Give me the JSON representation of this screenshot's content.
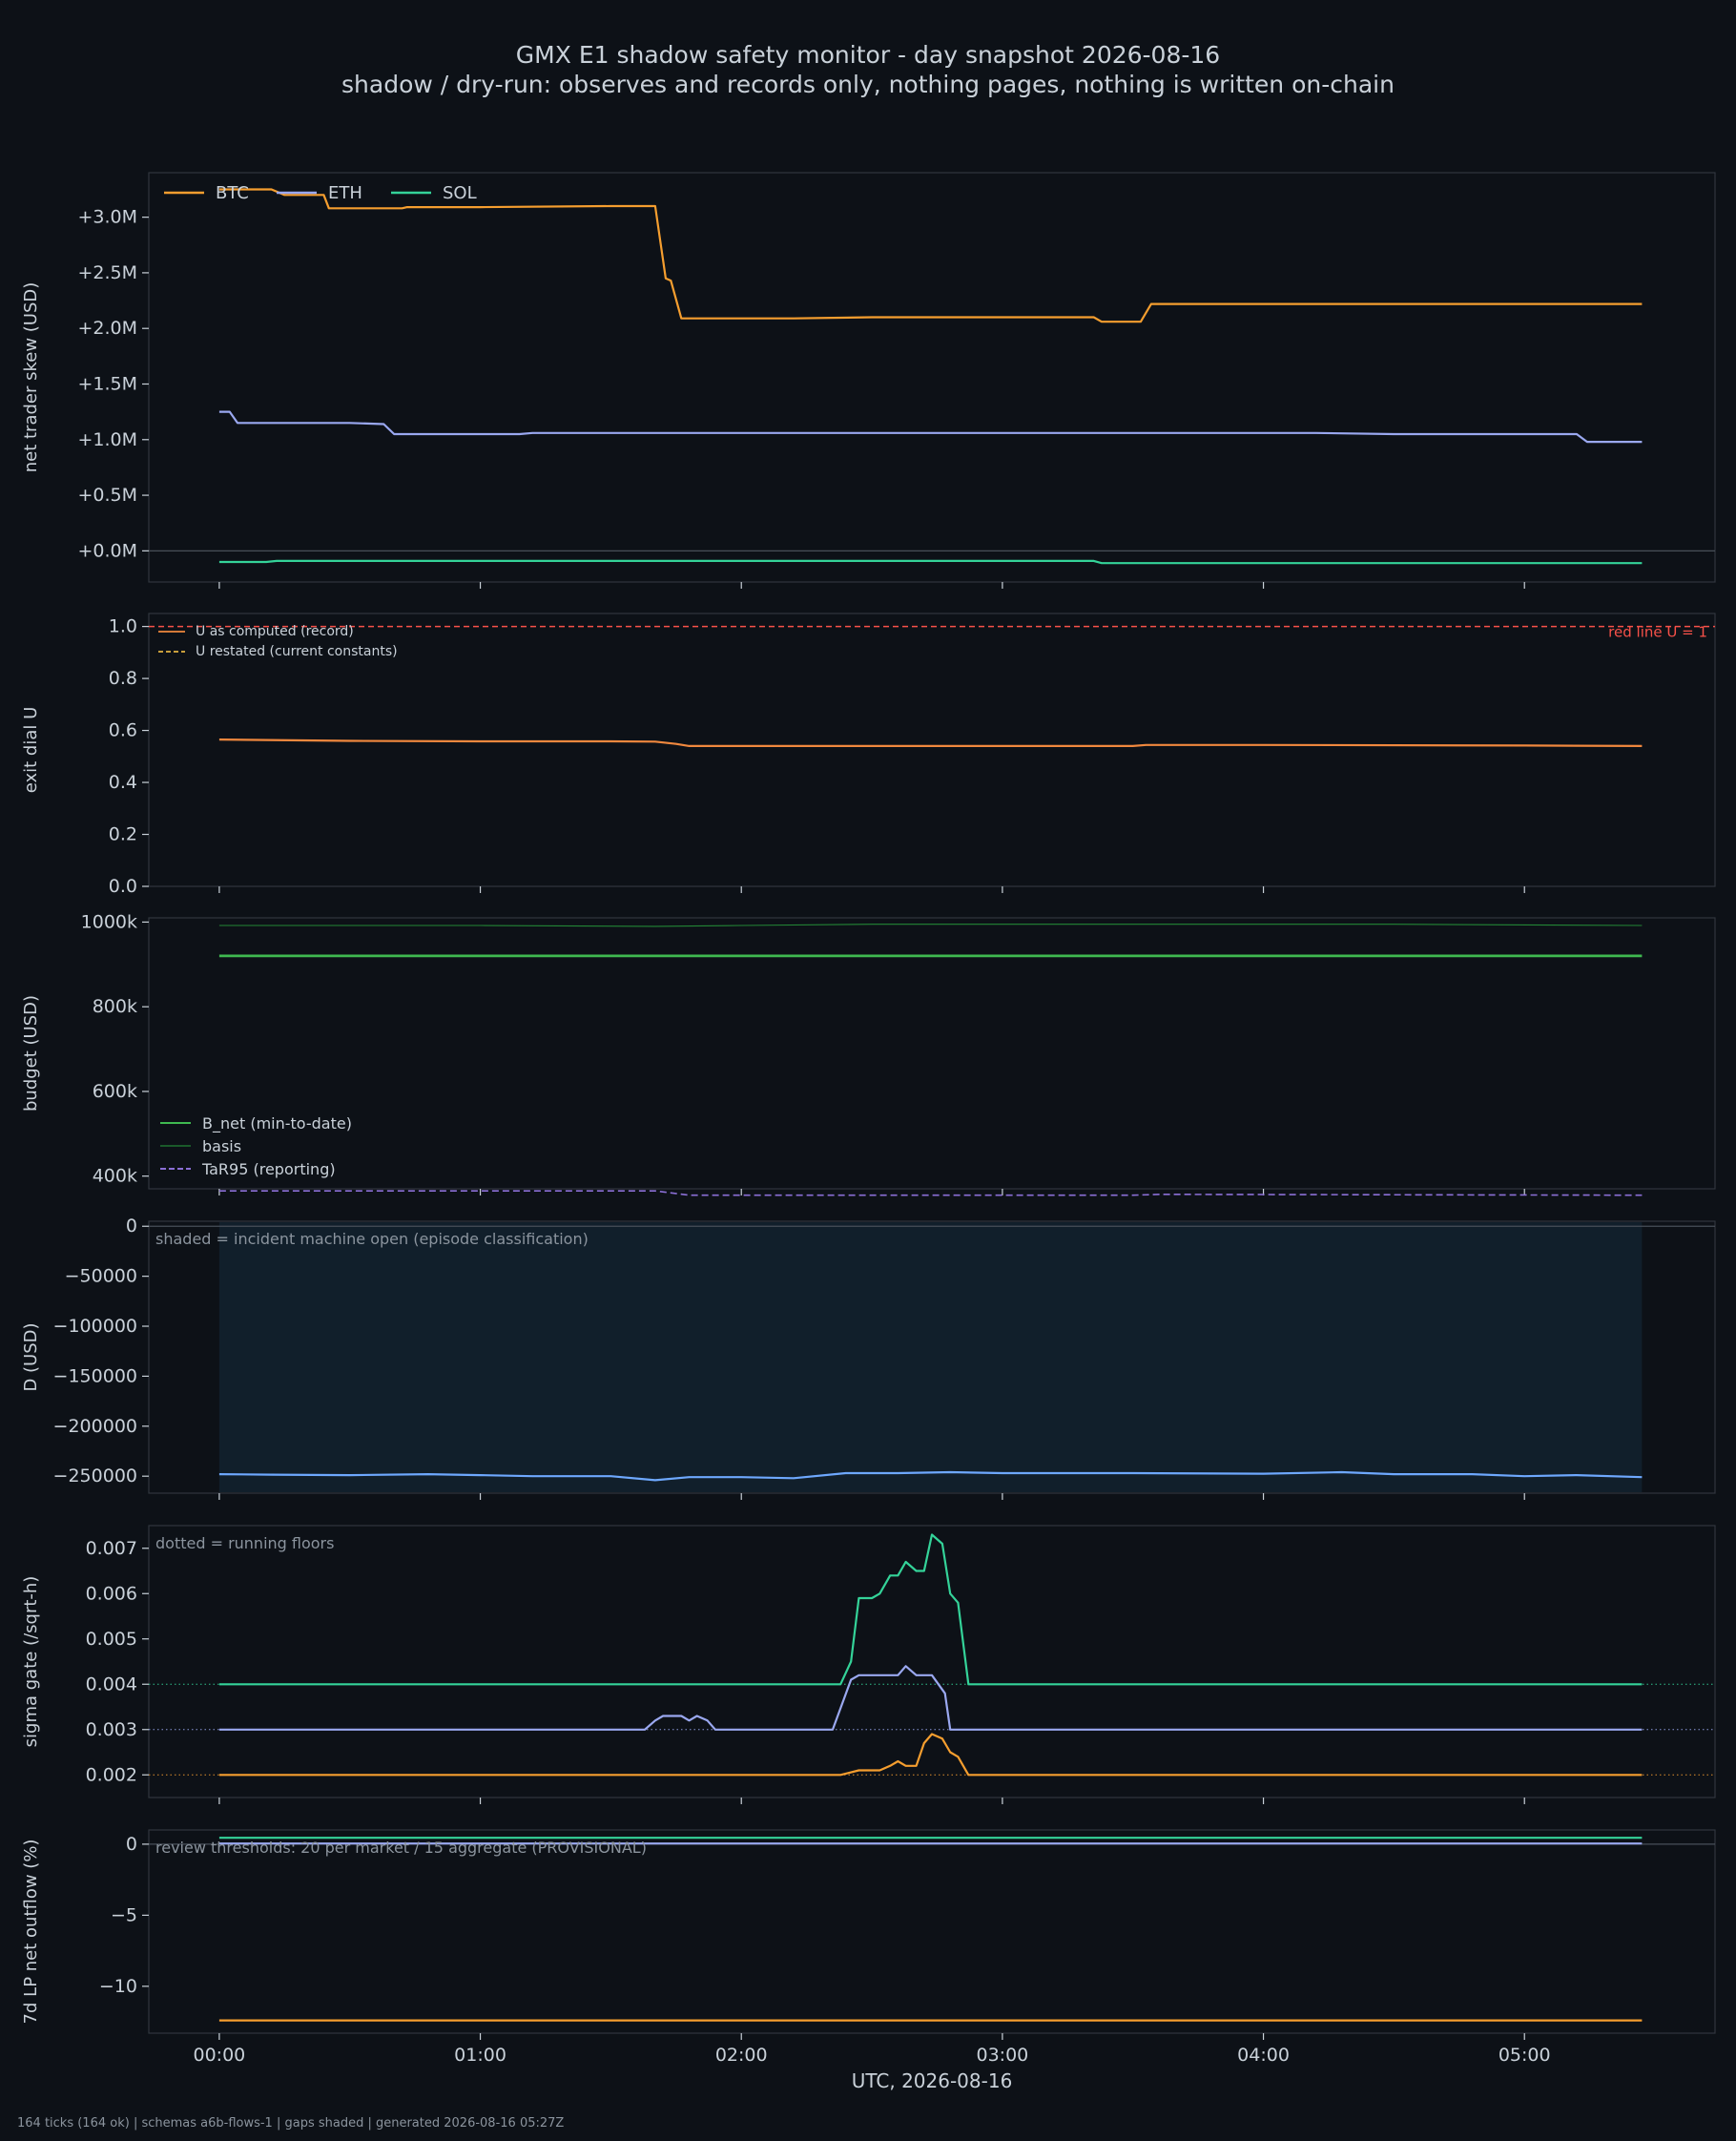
{
  "title": "GMX E1 shadow safety monitor - day snapshot 2026-08-16",
  "subtitle": "shadow / dry-run: observes and records only, nothing pages, nothing is written on-chain",
  "footer": "164 ticks (164 ok) | schemas a6b-flows-1 | gaps shaded | generated 2026-08-16 05:27Z",
  "colors": {
    "background": "#0d1117",
    "panel": "#0d1117",
    "frame": "#30363d",
    "text": "#c9d1d9",
    "btc": "#f59e2f",
    "eth": "#9aa8f0",
    "sol": "#34d399",
    "u_computed": "#f0883e",
    "u_restated": "#e3b341",
    "redline": "#f85149",
    "b_net": "#3fb950",
    "basis": "#238636",
    "tar95": "#8b6fd6",
    "d": "#6ea8fe",
    "shade": "#132433"
  },
  "chart_data": [
    {
      "id": "skew",
      "type": "line",
      "ylabel": "net trader skew (USD)",
      "ylim": [
        -0.28,
        3.4
      ],
      "yticks": [
        0,
        0.5,
        1.0,
        1.5,
        2.0,
        2.5,
        3.0
      ],
      "ytick_labels": [
        "+0.0M",
        "+0.5M",
        "+1.0M",
        "+1.5M",
        "+2.0M",
        "+2.5M",
        "+3.0M"
      ],
      "zero_line": 0,
      "legend": "top-left",
      "series": [
        {
          "name": "BTC",
          "color": "#f59e2f",
          "x": [
            0,
            0.2,
            0.25,
            0.32,
            0.4,
            0.42,
            0.7,
            0.72,
            1.0,
            1.5,
            1.67,
            1.71,
            1.73,
            1.77,
            1.8,
            2.0,
            2.2,
            2.5,
            3.0,
            3.2,
            3.35,
            3.38,
            3.5,
            3.53,
            3.57,
            4.0,
            4.5,
            5.0,
            5.45
          ],
          "values": [
            3.25,
            3.25,
            3.2,
            3.2,
            3.2,
            3.08,
            3.08,
            3.09,
            3.09,
            3.1,
            3.1,
            2.45,
            2.43,
            2.09,
            2.09,
            2.09,
            2.09,
            2.1,
            2.1,
            2.1,
            2.1,
            2.06,
            2.06,
            2.06,
            2.22,
            2.22,
            2.22,
            2.22,
            2.22
          ]
        },
        {
          "name": "ETH",
          "color": "#9aa8f0",
          "x": [
            0,
            0.04,
            0.07,
            0.1,
            0.5,
            0.63,
            0.67,
            1.0,
            1.15,
            1.2,
            2.0,
            2.5,
            3.0,
            3.5,
            4.0,
            4.2,
            4.5,
            4.9,
            4.95,
            5.2,
            5.24,
            5.45
          ],
          "values": [
            1.25,
            1.25,
            1.15,
            1.15,
            1.15,
            1.14,
            1.05,
            1.05,
            1.05,
            1.06,
            1.06,
            1.06,
            1.06,
            1.06,
            1.06,
            1.06,
            1.05,
            1.05,
            1.05,
            1.05,
            0.98,
            0.98
          ]
        },
        {
          "name": "SOL",
          "color": "#34d399",
          "x": [
            0,
            0.18,
            0.22,
            1.0,
            2.0,
            3.0,
            3.35,
            3.38,
            4.0,
            5.0,
            5.45
          ],
          "values": [
            -0.1,
            -0.1,
            -0.09,
            -0.09,
            -0.09,
            -0.09,
            -0.09,
            -0.11,
            -0.11,
            -0.11,
            -0.11
          ]
        }
      ]
    },
    {
      "id": "exit",
      "type": "line",
      "ylabel": "exit dial U",
      "ylim": [
        0,
        1.05
      ],
      "yticks": [
        0,
        0.2,
        0.4,
        0.6,
        0.8,
        1.0
      ],
      "ytick_labels": [
        "0.0",
        "0.2",
        "0.4",
        "0.6",
        "0.8",
        "1.0"
      ],
      "legend": "top-left",
      "annotation": "red line U = 1",
      "series": [
        {
          "name": "U as computed (record)",
          "color": "#f0883e",
          "x": [
            0,
            0.5,
            1.0,
            1.5,
            1.67,
            1.75,
            1.8,
            2.5,
            3.0,
            3.5,
            3.55,
            4.0,
            5.0,
            5.45
          ],
          "values": [
            0.565,
            0.56,
            0.558,
            0.558,
            0.557,
            0.548,
            0.54,
            0.54,
            0.54,
            0.54,
            0.544,
            0.544,
            0.542,
            0.54
          ]
        },
        {
          "name": "U restated (current constants)",
          "color": "#e3b341",
          "x": [],
          "values": []
        }
      ],
      "redline": {
        "value": 1.0,
        "color": "#f85149"
      }
    },
    {
      "id": "budget",
      "type": "line",
      "ylabel": "budget (USD)",
      "ylim": [
        370000,
        1010000
      ],
      "yticks": [
        400000,
        600000,
        800000,
        1000000
      ],
      "ytick_labels": [
        "400k",
        "600k",
        "800k",
        "1000k"
      ],
      "legend": "bottom-left",
      "series": [
        {
          "name": "B_net (min-to-date)",
          "color": "#3fb950",
          "x": [
            0,
            5.45
          ],
          "values": [
            920000,
            920000
          ]
        },
        {
          "name": "basis",
          "color": "#238636",
          "x": [
            0,
            1.0,
            1.67,
            2.0,
            2.5,
            3.0,
            4.0,
            4.5,
            5.45
          ],
          "values": [
            992000,
            992000,
            990000,
            992000,
            995000,
            995000,
            995000,
            995000,
            992000
          ]
        },
        {
          "name": "TaR95 (reporting)",
          "color": "#8b6fd6",
          "x": [
            0,
            1.67,
            1.8,
            3.5,
            3.6,
            5.45
          ],
          "values": [
            365000,
            365000,
            355000,
            355000,
            357000,
            355000
          ]
        }
      ]
    },
    {
      "id": "drawdown",
      "type": "line",
      "ylabel": "D (USD)",
      "ylim": [
        -267000,
        5000
      ],
      "yticks": [
        0,
        -50000,
        -100000,
        -150000,
        -200000,
        -250000
      ],
      "ytick_labels": [
        "0",
        "−50000",
        "−100000",
        "−150000",
        "−200000",
        "−250000"
      ],
      "zero_line": 0,
      "annotation": "shaded = incident machine open (episode classification)",
      "shade": [
        0,
        5.45
      ],
      "series": [
        {
          "name": "D",
          "color": "#6ea8fe",
          "x": [
            0,
            0.2,
            0.5,
            0.8,
            1.0,
            1.2,
            1.5,
            1.67,
            1.8,
            2.0,
            2.2,
            2.4,
            2.6,
            2.8,
            3.0,
            3.5,
            4.0,
            4.3,
            4.5,
            4.8,
            5.0,
            5.2,
            5.45
          ],
          "values": [
            -248000,
            -248500,
            -249000,
            -248000,
            -249000,
            -250000,
            -250000,
            -254000,
            -251000,
            -251000,
            -252000,
            -247000,
            -247000,
            -246000,
            -247000,
            -247000,
            -247500,
            -246000,
            -248000,
            -248000,
            -250000,
            -249000,
            -251000
          ]
        }
      ]
    },
    {
      "id": "sigma",
      "type": "line",
      "ylabel": "sigma gate (/sqrt-h)",
      "ylim": [
        0.0015,
        0.0075
      ],
      "yticks": [
        0.002,
        0.003,
        0.004,
        0.005,
        0.006,
        0.007
      ],
      "ytick_labels": [
        "0.002",
        "0.003",
        "0.004",
        "0.005",
        "0.006",
        "0.007"
      ],
      "annotation": "dotted = running floors",
      "floors": [
        {
          "value": 0.004,
          "color": "#34d399"
        },
        {
          "value": 0.003,
          "color": "#9aa8f0"
        },
        {
          "value": 0.002,
          "color": "#f59e2f"
        }
      ],
      "series": [
        {
          "name": "SOL",
          "color": "#34d399",
          "x": [
            0,
            2.38,
            2.42,
            2.45,
            2.5,
            2.53,
            2.57,
            2.6,
            2.63,
            2.67,
            2.7,
            2.73,
            2.77,
            2.8,
            2.83,
            2.87,
            3.0,
            5.45
          ],
          "values": [
            0.004,
            0.004,
            0.0045,
            0.0059,
            0.0059,
            0.006,
            0.0064,
            0.0064,
            0.0067,
            0.0065,
            0.0065,
            0.0073,
            0.0071,
            0.006,
            0.0058,
            0.004,
            0.004,
            0.004
          ]
        },
        {
          "name": "ETH",
          "color": "#9aa8f0",
          "x": [
            0,
            1.63,
            1.67,
            1.7,
            1.77,
            1.8,
            1.83,
            1.87,
            1.9,
            2.0,
            2.35,
            2.42,
            2.45,
            2.6,
            2.63,
            2.67,
            2.73,
            2.78,
            2.8,
            3.0,
            5.45
          ],
          "values": [
            0.003,
            0.003,
            0.0032,
            0.0033,
            0.0033,
            0.0032,
            0.0033,
            0.0032,
            0.003,
            0.003,
            0.003,
            0.0041,
            0.0042,
            0.0042,
            0.0044,
            0.0042,
            0.0042,
            0.0038,
            0.003,
            0.003,
            0.003
          ]
        },
        {
          "name": "BTC",
          "color": "#f59e2f",
          "x": [
            0,
            2.38,
            2.45,
            2.53,
            2.57,
            2.6,
            2.63,
            2.67,
            2.7,
            2.73,
            2.77,
            2.8,
            2.83,
            2.87,
            3.0,
            5.45
          ],
          "values": [
            0.002,
            0.002,
            0.0021,
            0.0021,
            0.0022,
            0.0023,
            0.0022,
            0.0022,
            0.0027,
            0.0029,
            0.0028,
            0.0025,
            0.0024,
            0.002,
            0.002,
            0.002
          ]
        }
      ]
    },
    {
      "id": "outflow",
      "type": "line",
      "ylabel": "7d LP net outflow (%)",
      "ylim": [
        -13.3,
        1.0
      ],
      "yticks": [
        0,
        -5,
        -10
      ],
      "ytick_labels": [
        "0",
        "−5",
        "−10"
      ],
      "zero_line": 0,
      "annotation": "review thresholds: 20 per market / 15 aggregate (PROVISIONAL)",
      "series": [
        {
          "name": "SOL",
          "color": "#34d399",
          "x": [
            0,
            5.45
          ],
          "values": [
            0.45,
            0.45
          ]
        },
        {
          "name": "ETH",
          "color": "#9aa8f0",
          "x": [
            0,
            5.45
          ],
          "values": [
            0.05,
            0.05
          ]
        },
        {
          "name": "BTC",
          "color": "#f59e2f",
          "x": [
            0,
            5.45
          ],
          "values": [
            -12.4,
            -12.4
          ]
        }
      ]
    }
  ],
  "x_axis": {
    "label": "UTC, 2026-08-16",
    "xlim": [
      -0.27,
      5.73
    ],
    "ticks": [
      0,
      1,
      2,
      3,
      4,
      5
    ],
    "tick_labels": [
      "00:00",
      "01:00",
      "02:00",
      "03:00",
      "04:00",
      "05:00"
    ]
  }
}
